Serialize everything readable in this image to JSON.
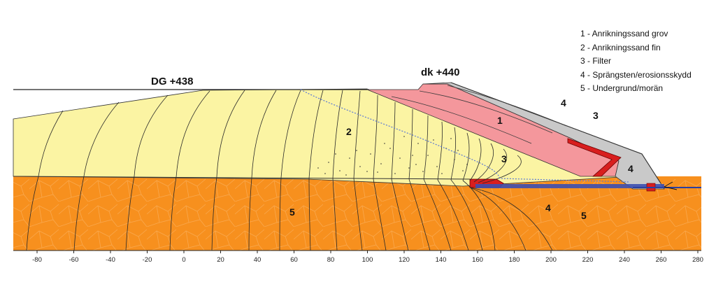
{
  "labels": {
    "dg": "DG +438",
    "dk": "dk +440"
  },
  "legend": [
    "1 - Anrikningssand grov",
    "2 - Anrikningssand fin",
    "3 - Filter",
    "4 - Sprängsten/erosionsskydd",
    "5 - Undergrund/morän"
  ],
  "zone_numbers": {
    "zone1": "1",
    "zone2": "2",
    "zone3_filter": "3",
    "zone3_toe": "3",
    "zone4_slope": "4",
    "zone4_toe": "4",
    "zone4_base": "4",
    "zone5_left": "5",
    "zone5_right": "5"
  },
  "axis": {
    "ticks": [
      "-80",
      "-60",
      "-40",
      "-20",
      "0",
      "20",
      "40",
      "60",
      "80",
      "100",
      "120",
      "140",
      "160",
      "180",
      "200",
      "220",
      "240",
      "260",
      "280"
    ]
  },
  "colors": {
    "tailings_fine": "#fbf4a3",
    "tailings_coarse": "#f4979c",
    "foundation": "#f7901e",
    "rockfill": "#c9c9c9",
    "filter": "#d81e1e",
    "phreatic": "#5a78d6"
  }
}
